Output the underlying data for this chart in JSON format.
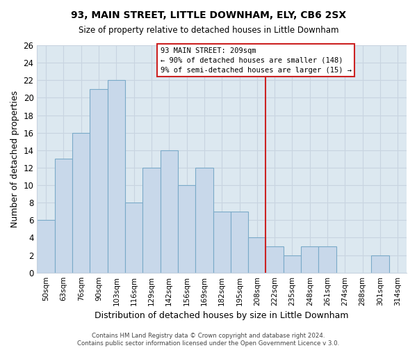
{
  "title": "93, MAIN STREET, LITTLE DOWNHAM, ELY, CB6 2SX",
  "subtitle": "Size of property relative to detached houses in Little Downham",
  "xlabel": "Distribution of detached houses by size in Little Downham",
  "ylabel": "Number of detached properties",
  "footer1": "Contains HM Land Registry data © Crown copyright and database right 2024.",
  "footer2": "Contains public sector information licensed under the Open Government Licence v 3.0.",
  "bins": [
    "50sqm",
    "63sqm",
    "76sqm",
    "90sqm",
    "103sqm",
    "116sqm",
    "129sqm",
    "142sqm",
    "156sqm",
    "169sqm",
    "182sqm",
    "195sqm",
    "208sqm",
    "222sqm",
    "235sqm",
    "248sqm",
    "261sqm",
    "274sqm",
    "288sqm",
    "301sqm",
    "314sqm"
  ],
  "values": [
    6,
    13,
    16,
    21,
    22,
    8,
    12,
    14,
    10,
    12,
    7,
    7,
    4,
    3,
    2,
    3,
    3,
    0,
    0,
    2,
    0
  ],
  "bar_color": "#c8d8ea",
  "bar_edge_color": "#7aaac8",
  "grid_color": "#c8d4e0",
  "bg_color": "#dce8f0",
  "subject_line_color": "#cc2222",
  "annotation_box_color": "#ffffff",
  "annotation_border_color": "#cc2222",
  "subject_label": "93 MAIN STREET: 209sqm",
  "annotation_line1": "← 90% of detached houses are smaller (148)",
  "annotation_line2": "9% of semi-detached houses are larger (15) →",
  "ylim": [
    0,
    26
  ],
  "yticks": [
    0,
    2,
    4,
    6,
    8,
    10,
    12,
    14,
    16,
    18,
    20,
    22,
    24,
    26
  ],
  "subject_line_bin_index": 12
}
